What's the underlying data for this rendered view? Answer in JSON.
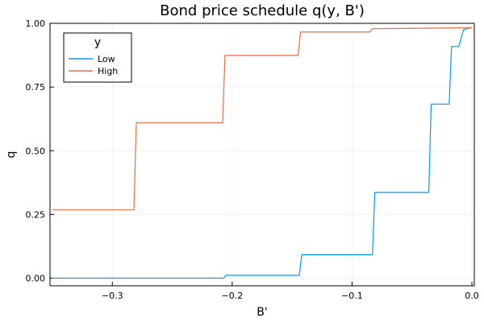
{
  "chart_data": {
    "type": "line",
    "title": "Bond price schedule q(y, B')",
    "xlabel": "B'",
    "ylabel": "q",
    "xlim": [
      -0.352,
      0.002
    ],
    "ylim": [
      -0.03,
      1.0
    ],
    "xticks": [
      -0.3,
      -0.2,
      -0.1,
      0.0
    ],
    "xtick_labels": [
      "−0.3",
      "−0.2",
      "−0.1",
      "0.0"
    ],
    "yticks": [
      0.0,
      0.25,
      0.5,
      0.75,
      1.0
    ],
    "ytick_labels": [
      "0.00",
      "0.25",
      "0.50",
      "0.75",
      "1.00"
    ],
    "grid": true,
    "legend": {
      "title": "y",
      "position": "top-left"
    },
    "series": [
      {
        "name": "Low",
        "color": "#009AFA",
        "points": [
          [
            -0.35,
            0.0
          ],
          [
            -0.207,
            0.0
          ],
          [
            -0.205,
            0.011
          ],
          [
            -0.144,
            0.011
          ],
          [
            -0.142,
            0.092
          ],
          [
            -0.083,
            0.092
          ],
          [
            -0.081,
            0.336
          ],
          [
            -0.036,
            0.336
          ],
          [
            -0.034,
            0.683
          ],
          [
            -0.019,
            0.683
          ],
          [
            -0.017,
            0.909
          ],
          [
            -0.011,
            0.909
          ],
          [
            -0.007,
            0.975
          ],
          [
            -0.003,
            0.98
          ],
          [
            0.0,
            0.983
          ]
        ]
      },
      {
        "name": "High",
        "color": "#E26F46",
        "points": [
          [
            -0.35,
            0.268
          ],
          [
            -0.282,
            0.268
          ],
          [
            -0.28,
            0.61
          ],
          [
            -0.208,
            0.61
          ],
          [
            -0.206,
            0.874
          ],
          [
            -0.145,
            0.874
          ],
          [
            -0.143,
            0.966
          ],
          [
            -0.085,
            0.966
          ],
          [
            -0.083,
            0.979
          ],
          [
            -0.03,
            0.981
          ],
          [
            0.0,
            0.983
          ]
        ]
      }
    ]
  }
}
